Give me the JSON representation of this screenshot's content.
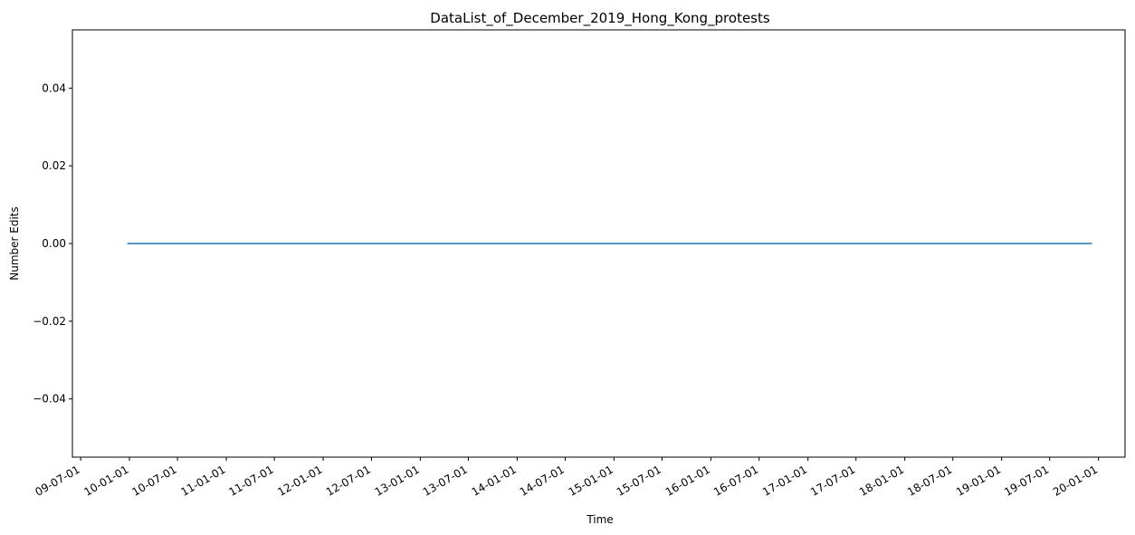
{
  "chart_data": {
    "type": "line",
    "title": "DataList_of_December_2019_Hong_Kong_protests",
    "xlabel": "Time",
    "ylabel": "Number Edits",
    "xlim": [
      "2009-05-31",
      "2020-04-10"
    ],
    "ylim": [
      -0.055,
      0.055
    ],
    "x_ticks": [
      {
        "date": "2009-07-01",
        "label": "09-07-01"
      },
      {
        "date": "2010-01-01",
        "label": "10-01-01"
      },
      {
        "date": "2010-07-01",
        "label": "10-07-01"
      },
      {
        "date": "2011-01-01",
        "label": "11-01-01"
      },
      {
        "date": "2011-07-01",
        "label": "11-07-01"
      },
      {
        "date": "2012-01-01",
        "label": "12-01-01"
      },
      {
        "date": "2012-07-01",
        "label": "12-07-01"
      },
      {
        "date": "2013-01-01",
        "label": "13-01-01"
      },
      {
        "date": "2013-07-01",
        "label": "13-07-01"
      },
      {
        "date": "2014-01-01",
        "label": "14-01-01"
      },
      {
        "date": "2014-07-01",
        "label": "14-07-01"
      },
      {
        "date": "2015-01-01",
        "label": "15-01-01"
      },
      {
        "date": "2015-07-01",
        "label": "15-07-01"
      },
      {
        "date": "2016-01-01",
        "label": "16-01-01"
      },
      {
        "date": "2016-07-01",
        "label": "16-07-01"
      },
      {
        "date": "2017-01-01",
        "label": "17-01-01"
      },
      {
        "date": "2017-07-01",
        "label": "17-07-01"
      },
      {
        "date": "2018-01-01",
        "label": "18-01-01"
      },
      {
        "date": "2018-07-01",
        "label": "18-07-01"
      },
      {
        "date": "2019-01-01",
        "label": "19-01-01"
      },
      {
        "date": "2019-07-01",
        "label": "19-07-01"
      },
      {
        "date": "2020-01-01",
        "label": "20-01-01"
      }
    ],
    "y_ticks": [
      {
        "value": 0.04,
        "label": "0.04"
      },
      {
        "value": 0.02,
        "label": "0.02"
      },
      {
        "value": 0.0,
        "label": "0.00"
      },
      {
        "value": -0.02,
        "label": "−0.02"
      },
      {
        "value": -0.04,
        "label": "−0.04"
      }
    ],
    "series": [
      {
        "color": "#1f77b4",
        "points": [
          {
            "x": "2009-12-24",
            "y": 0
          },
          {
            "x": "2019-12-08",
            "y": 0
          }
        ]
      }
    ],
    "grid": false,
    "legend": "none"
  }
}
